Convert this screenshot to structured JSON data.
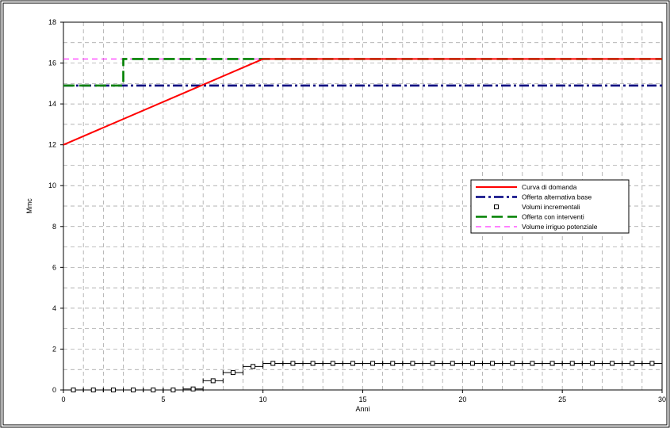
{
  "chart_data": {
    "type": "line",
    "title": "",
    "xlabel": "Anni",
    "ylabel": "Mmc",
    "xlim": [
      0,
      30
    ],
    "ylim": [
      0,
      18
    ],
    "x_ticks": [
      0,
      5,
      10,
      15,
      20,
      25,
      30
    ],
    "y_ticks": [
      0,
      2,
      4,
      6,
      8,
      10,
      12,
      14,
      16,
      18
    ],
    "grid": true,
    "legend_position": "center-right",
    "series": [
      {
        "name": "Curva di domanda",
        "style": "solid",
        "color": "#ff0000",
        "x": [
          0,
          10,
          30
        ],
        "y": [
          12.0,
          16.2,
          16.2
        ]
      },
      {
        "name": "Offerta alternativa base",
        "style": "dash-dot",
        "color": "#000080",
        "x": [
          0,
          30
        ],
        "y": [
          14.9,
          14.9
        ]
      },
      {
        "name": "Volumi incrementali",
        "style": "step-markers",
        "color": "#000000",
        "marker": "open-square",
        "x": [
          0.5,
          1.5,
          2.5,
          3.5,
          4.5,
          5.5,
          6.5,
          7.5,
          8.5,
          9.5,
          10.5,
          11.5,
          12.5,
          13.5,
          14.5,
          15.5,
          16.5,
          17.5,
          18.5,
          19.5,
          20.5,
          21.5,
          22.5,
          23.5,
          24.5,
          25.5,
          26.5,
          27.5,
          28.5,
          29.5
        ],
        "y": [
          0,
          0,
          0,
          0,
          0,
          0,
          0.05,
          0.45,
          0.85,
          1.15,
          1.3,
          1.3,
          1.3,
          1.3,
          1.3,
          1.3,
          1.3,
          1.3,
          1.3,
          1.3,
          1.3,
          1.3,
          1.3,
          1.3,
          1.3,
          1.3,
          1.3,
          1.3,
          1.3,
          1.3
        ]
      },
      {
        "name": "Offerta con interventi",
        "style": "dashed-step",
        "color": "#008000",
        "x": [
          0,
          3,
          3,
          30
        ],
        "y": [
          14.9,
          14.9,
          16.2,
          16.2
        ]
      },
      {
        "name": "Volume irriguo potenziale",
        "style": "dashed",
        "color": "#ff00ff",
        "x": [
          0,
          30
        ],
        "y": [
          16.2,
          16.2
        ]
      }
    ]
  }
}
